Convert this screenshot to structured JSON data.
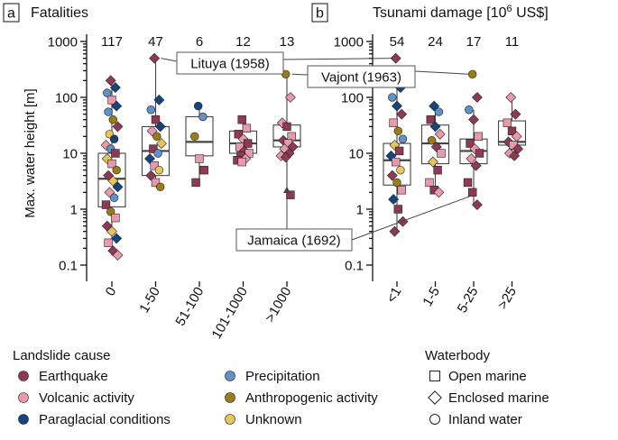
{
  "colors": {
    "Earthquake": "#8e3a54",
    "Volcanic activity": "#e89aaa",
    "Paraglacial conditions": "#15447f",
    "Precipitation": "#5f93c8",
    "Anthropogenic activity": "#9c7c16",
    "Unknown": "#e7c55a"
  },
  "legend": {
    "cause_title": "Landslide cause",
    "causes": [
      "Earthquake",
      "Volcanic activity",
      "Paraglacial conditions",
      "Precipitation",
      "Anthropogenic activity",
      "Unknown"
    ],
    "waterbody_title": "Waterbody",
    "waterbodies": [
      {
        "label": "Open marine",
        "shape": "square"
      },
      {
        "label": "Enclosed marine",
        "shape": "diamond"
      },
      {
        "label": "Inland water",
        "shape": "circle"
      }
    ]
  },
  "chart_data": [
    {
      "panel_label": "a",
      "type": "scatter",
      "title": "Fatalities",
      "ylabel": "Max. water height [m]",
      "yscale": "log",
      "ylim": [
        0.07,
        1000
      ],
      "yticks": [
        "0.1",
        "1",
        "10",
        "100",
        "1000"
      ],
      "categories": [
        "0",
        "1-50",
        "51-100",
        "101-1000",
        ">1000"
      ],
      "counts": [
        "117",
        "47",
        "6",
        "12",
        "13"
      ],
      "boxes": [
        {
          "q1": 1.1,
          "median": 3.5,
          "q3": 10,
          "low": 0.15,
          "high": 200
        },
        {
          "q1": 4,
          "median": 11,
          "q3": 30,
          "low": 2.5,
          "high": 500
        },
        {
          "q1": 9,
          "median": 16,
          "q3": 45,
          "low": 3,
          "high": 70
        },
        {
          "q1": 10,
          "median": 15,
          "q3": 25,
          "low": 7,
          "high": 40
        },
        {
          "q1": 13,
          "median": 17,
          "q3": 32,
          "low": 1.8,
          "high": 260
        }
      ],
      "points": [
        {
          "c": 0,
          "y": 200,
          "cause": "Earthquake",
          "wb": "diamond"
        },
        {
          "c": 0,
          "y": 150,
          "cause": "Paraglacial conditions",
          "wb": "diamond"
        },
        {
          "c": 0,
          "y": 120,
          "cause": "Precipitation",
          "wb": "circle"
        },
        {
          "c": 0,
          "y": 90,
          "cause": "Volcanic activity",
          "wb": "square"
        },
        {
          "c": 0,
          "y": 70,
          "cause": "Paraglacial conditions",
          "wb": "diamond"
        },
        {
          "c": 0,
          "y": 55,
          "cause": "Precipitation",
          "wb": "circle"
        },
        {
          "c": 0,
          "y": 40,
          "cause": "Anthropogenic activity",
          "wb": "circle"
        },
        {
          "c": 0,
          "y": 30,
          "cause": "Earthquake",
          "wb": "diamond"
        },
        {
          "c": 0,
          "y": 22,
          "cause": "Unknown",
          "wb": "circle"
        },
        {
          "c": 0,
          "y": 18,
          "cause": "Paraglacial conditions",
          "wb": "circle"
        },
        {
          "c": 0,
          "y": 14,
          "cause": "Volcanic activity",
          "wb": "diamond"
        },
        {
          "c": 0,
          "y": 12,
          "cause": "Precipitation",
          "wb": "circle"
        },
        {
          "c": 0,
          "y": 10,
          "cause": "Earthquake",
          "wb": "square"
        },
        {
          "c": 0,
          "y": 8,
          "cause": "Unknown",
          "wb": "diamond"
        },
        {
          "c": 0,
          "y": 6.5,
          "cause": "Volcanic activity",
          "wb": "square"
        },
        {
          "c": 0,
          "y": 5,
          "cause": "Anthropogenic activity",
          "wb": "circle"
        },
        {
          "c": 0,
          "y": 4,
          "cause": "Earthquake",
          "wb": "diamond"
        },
        {
          "c": 0,
          "y": 3.2,
          "cause": "Unknown",
          "wb": "diamond"
        },
        {
          "c": 0,
          "y": 2.5,
          "cause": "Paraglacial conditions",
          "wb": "diamond"
        },
        {
          "c": 0,
          "y": 2,
          "cause": "Volcanic activity",
          "wb": "diamond"
        },
        {
          "c": 0,
          "y": 1.6,
          "cause": "Precipitation",
          "wb": "circle"
        },
        {
          "c": 0,
          "y": 1.2,
          "cause": "Earthquake",
          "wb": "square"
        },
        {
          "c": 0,
          "y": 0.9,
          "cause": "Anthropogenic activity",
          "wb": "circle"
        },
        {
          "c": 0,
          "y": 0.7,
          "cause": "Volcanic activity",
          "wb": "square"
        },
        {
          "c": 0,
          "y": 0.5,
          "cause": "Earthquake",
          "wb": "diamond"
        },
        {
          "c": 0,
          "y": 0.4,
          "cause": "Unknown",
          "wb": "diamond"
        },
        {
          "c": 0,
          "y": 0.3,
          "cause": "Paraglacial conditions",
          "wb": "diamond"
        },
        {
          "c": 0,
          "y": 0.25,
          "cause": "Volcanic activity",
          "wb": "square"
        },
        {
          "c": 0,
          "y": 0.18,
          "cause": "Earthquake",
          "wb": "diamond"
        },
        {
          "c": 0,
          "y": 0.15,
          "cause": "Volcanic activity",
          "wb": "diamond"
        },
        {
          "c": 1,
          "y": 500,
          "cause": "Earthquake",
          "wb": "diamond"
        },
        {
          "c": 1,
          "y": 90,
          "cause": "Paraglacial conditions",
          "wb": "diamond"
        },
        {
          "c": 1,
          "y": 60,
          "cause": "Precipitation",
          "wb": "circle"
        },
        {
          "c": 1,
          "y": 40,
          "cause": "Earthquake",
          "wb": "square"
        },
        {
          "c": 1,
          "y": 30,
          "cause": "Paraglacial conditions",
          "wb": "diamond"
        },
        {
          "c": 1,
          "y": 25,
          "cause": "Volcanic activity",
          "wb": "diamond"
        },
        {
          "c": 1,
          "y": 20,
          "cause": "Anthropogenic activity",
          "wb": "circle"
        },
        {
          "c": 1,
          "y": 15,
          "cause": "Unknown",
          "wb": "diamond"
        },
        {
          "c": 1,
          "y": 12,
          "cause": "Earthquake",
          "wb": "square"
        },
        {
          "c": 1,
          "y": 10,
          "cause": "Precipitation",
          "wb": "circle"
        },
        {
          "c": 1,
          "y": 8,
          "cause": "Paraglacial conditions",
          "wb": "diamond"
        },
        {
          "c": 1,
          "y": 6,
          "cause": "Volcanic activity",
          "wb": "square"
        },
        {
          "c": 1,
          "y": 5,
          "cause": "Unknown",
          "wb": "circle"
        },
        {
          "c": 1,
          "y": 4,
          "cause": "Earthquake",
          "wb": "diamond"
        },
        {
          "c": 1,
          "y": 3,
          "cause": "Volcanic activity",
          "wb": "square"
        },
        {
          "c": 1,
          "y": 2.5,
          "cause": "Anthropogenic activity",
          "wb": "circle"
        },
        {
          "c": 2,
          "y": 70,
          "cause": "Paraglacial conditions",
          "wb": "circle"
        },
        {
          "c": 2,
          "y": 45,
          "cause": "Precipitation",
          "wb": "circle"
        },
        {
          "c": 2,
          "y": 20,
          "cause": "Anthropogenic activity",
          "wb": "circle"
        },
        {
          "c": 2,
          "y": 8,
          "cause": "Volcanic activity",
          "wb": "square"
        },
        {
          "c": 2,
          "y": 5,
          "cause": "Earthquake",
          "wb": "square"
        },
        {
          "c": 2,
          "y": 3,
          "cause": "Earthquake",
          "wb": "square"
        },
        {
          "c": 3,
          "y": 40,
          "cause": "Earthquake",
          "wb": "square"
        },
        {
          "c": 3,
          "y": 28,
          "cause": "Volcanic activity",
          "wb": "square"
        },
        {
          "c": 3,
          "y": 22,
          "cause": "Earthquake",
          "wb": "square"
        },
        {
          "c": 3,
          "y": 18,
          "cause": "Volcanic activity",
          "wb": "diamond"
        },
        {
          "c": 3,
          "y": 15,
          "cause": "Earthquake",
          "wb": "square"
        },
        {
          "c": 3,
          "y": 13,
          "cause": "Volcanic activity",
          "wb": "square"
        },
        {
          "c": 3,
          "y": 11,
          "cause": "Earthquake",
          "wb": "diamond"
        },
        {
          "c": 3,
          "y": 10,
          "cause": "Volcanic activity",
          "wb": "square"
        },
        {
          "c": 3,
          "y": 9,
          "cause": "Earthquake",
          "wb": "square"
        },
        {
          "c": 3,
          "y": 8,
          "cause": "Volcanic activity",
          "wb": "diamond"
        },
        {
          "c": 3,
          "y": 7.5,
          "cause": "Earthquake",
          "wb": "square"
        },
        {
          "c": 3,
          "y": 7,
          "cause": "Volcanic activity",
          "wb": "square"
        },
        {
          "c": 4,
          "y": 260,
          "cause": "Anthropogenic activity",
          "wb": "circle"
        },
        {
          "c": 4,
          "y": 100,
          "cause": "Volcanic activity",
          "wb": "diamond"
        },
        {
          "c": 4,
          "y": 35,
          "cause": "Volcanic activity",
          "wb": "diamond"
        },
        {
          "c": 4,
          "y": 30,
          "cause": "Earthquake",
          "wb": "square"
        },
        {
          "c": 4,
          "y": 20,
          "cause": "Volcanic activity",
          "wb": "square"
        },
        {
          "c": 4,
          "y": 17,
          "cause": "Earthquake",
          "wb": "diamond"
        },
        {
          "c": 4,
          "y": 15,
          "cause": "Volcanic activity",
          "wb": "square"
        },
        {
          "c": 4,
          "y": 13,
          "cause": "Earthquake",
          "wb": "diamond"
        },
        {
          "c": 4,
          "y": 12,
          "cause": "Volcanic activity",
          "wb": "diamond"
        },
        {
          "c": 4,
          "y": 10,
          "cause": "Earthquake",
          "wb": "diamond"
        },
        {
          "c": 4,
          "y": 9,
          "cause": "Volcanic activity",
          "wb": "diamond"
        },
        {
          "c": 4,
          "y": 8.5,
          "cause": "Earthquake",
          "wb": "diamond"
        },
        {
          "c": 4,
          "y": 1.8,
          "cause": "Earthquake",
          "wb": "square"
        }
      ]
    },
    {
      "panel_label": "b",
      "type": "scatter",
      "title": "Tsunami damage [10",
      "title_sup": "6",
      "title_suffix": " US$]",
      "yscale": "log",
      "ylim": [
        0.07,
        1000
      ],
      "yticks": [
        "0.1",
        "1",
        "10",
        "100",
        "1000"
      ],
      "categories": [
        "<1",
        "1-5",
        "5-25",
        ">25"
      ],
      "counts": [
        "54",
        "24",
        "17",
        "11"
      ],
      "boxes": [
        {
          "q1": 2.7,
          "median": 7.5,
          "q3": 15,
          "low": 0.4,
          "high": 150
        },
        {
          "q1": 6.5,
          "median": 15,
          "q3": 32,
          "low": 2,
          "high": 60
        },
        {
          "q1": 6.5,
          "median": 11,
          "q3": 18,
          "low": 1.2,
          "high": 60
        },
        {
          "q1": 14,
          "median": 16,
          "q3": 38,
          "low": 9,
          "high": 100
        }
      ],
      "points": [
        {
          "c": 0,
          "y": 500,
          "cause": "Earthquake",
          "wb": "diamond"
        },
        {
          "c": 0,
          "y": 150,
          "cause": "Paraglacial conditions",
          "wb": "diamond"
        },
        {
          "c": 0,
          "y": 100,
          "cause": "Precipitation",
          "wb": "circle"
        },
        {
          "c": 0,
          "y": 70,
          "cause": "Paraglacial conditions",
          "wb": "diamond"
        },
        {
          "c": 0,
          "y": 50,
          "cause": "Earthquake",
          "wb": "diamond"
        },
        {
          "c": 0,
          "y": 35,
          "cause": "Volcanic activity",
          "wb": "square"
        },
        {
          "c": 0,
          "y": 25,
          "cause": "Anthropogenic activity",
          "wb": "circle"
        },
        {
          "c": 0,
          "y": 18,
          "cause": "Precipitation",
          "wb": "circle"
        },
        {
          "c": 0,
          "y": 14,
          "cause": "Unknown",
          "wb": "diamond"
        },
        {
          "c": 0,
          "y": 11,
          "cause": "Earthquake",
          "wb": "square"
        },
        {
          "c": 0,
          "y": 9,
          "cause": "Paraglacial conditions",
          "wb": "diamond"
        },
        {
          "c": 0,
          "y": 7,
          "cause": "Volcanic activity",
          "wb": "square"
        },
        {
          "c": 0,
          "y": 5,
          "cause": "Unknown",
          "wb": "circle"
        },
        {
          "c": 0,
          "y": 4,
          "cause": "Earthquake",
          "wb": "diamond"
        },
        {
          "c": 0,
          "y": 3,
          "cause": "Anthropogenic activity",
          "wb": "circle"
        },
        {
          "c": 0,
          "y": 2.2,
          "cause": "Volcanic activity",
          "wb": "square"
        },
        {
          "c": 0,
          "y": 1.5,
          "cause": "Paraglacial conditions",
          "wb": "diamond"
        },
        {
          "c": 0,
          "y": 1.0,
          "cause": "Earthquake",
          "wb": "square"
        },
        {
          "c": 0,
          "y": 0.6,
          "cause": "Earthquake",
          "wb": "diamond"
        },
        {
          "c": 0,
          "y": 0.4,
          "cause": "Earthquake",
          "wb": "diamond"
        },
        {
          "c": 1,
          "y": 70,
          "cause": "Paraglacial conditions",
          "wb": "diamond"
        },
        {
          "c": 1,
          "y": 55,
          "cause": "Precipitation",
          "wb": "circle"
        },
        {
          "c": 1,
          "y": 40,
          "cause": "Earthquake",
          "wb": "square"
        },
        {
          "c": 1,
          "y": 30,
          "cause": "Paraglacial conditions",
          "wb": "diamond"
        },
        {
          "c": 1,
          "y": 22,
          "cause": "Volcanic activity",
          "wb": "diamond"
        },
        {
          "c": 1,
          "y": 17,
          "cause": "Anthropogenic activity",
          "wb": "circle"
        },
        {
          "c": 1,
          "y": 13,
          "cause": "Earthquake",
          "wb": "diamond"
        },
        {
          "c": 1,
          "y": 10,
          "cause": "Volcanic activity",
          "wb": "square"
        },
        {
          "c": 1,
          "y": 7,
          "cause": "Unknown",
          "wb": "diamond"
        },
        {
          "c": 1,
          "y": 5,
          "cause": "Earthquake",
          "wb": "square"
        },
        {
          "c": 1,
          "y": 3,
          "cause": "Volcanic activity",
          "wb": "square"
        },
        {
          "c": 1,
          "y": 2.2,
          "cause": "Earthquake",
          "wb": "square"
        },
        {
          "c": 1,
          "y": 2,
          "cause": "Volcanic activity",
          "wb": "diamond"
        },
        {
          "c": 2,
          "y": 260,
          "cause": "Anthropogenic activity",
          "wb": "circle"
        },
        {
          "c": 2,
          "y": 100,
          "cause": "Earthquake",
          "wb": "diamond"
        },
        {
          "c": 2,
          "y": 60,
          "cause": "Precipitation",
          "wb": "circle"
        },
        {
          "c": 2,
          "y": 40,
          "cause": "Earthquake",
          "wb": "diamond"
        },
        {
          "c": 2,
          "y": 20,
          "cause": "Volcanic activity",
          "wb": "square"
        },
        {
          "c": 2,
          "y": 15,
          "cause": "Earthquake",
          "wb": "square"
        },
        {
          "c": 2,
          "y": 12,
          "cause": "Volcanic activity",
          "wb": "diamond"
        },
        {
          "c": 2,
          "y": 10,
          "cause": "Earthquake",
          "wb": "square"
        },
        {
          "c": 2,
          "y": 8,
          "cause": "Volcanic activity",
          "wb": "diamond"
        },
        {
          "c": 2,
          "y": 6,
          "cause": "Earthquake",
          "wb": "diamond"
        },
        {
          "c": 2,
          "y": 3,
          "cause": "Earthquake",
          "wb": "square"
        },
        {
          "c": 2,
          "y": 2,
          "cause": "Earthquake",
          "wb": "square"
        },
        {
          "c": 2,
          "y": 1.2,
          "cause": "Earthquake",
          "wb": "diamond"
        },
        {
          "c": 3,
          "y": 100,
          "cause": "Volcanic activity",
          "wb": "diamond"
        },
        {
          "c": 3,
          "y": 50,
          "cause": "Earthquake",
          "wb": "diamond"
        },
        {
          "c": 3,
          "y": 35,
          "cause": "Volcanic activity",
          "wb": "square"
        },
        {
          "c": 3,
          "y": 25,
          "cause": "Earthquake",
          "wb": "square"
        },
        {
          "c": 3,
          "y": 20,
          "cause": "Volcanic activity",
          "wb": "diamond"
        },
        {
          "c": 3,
          "y": 16,
          "cause": "Earthquake",
          "wb": "diamond"
        },
        {
          "c": 3,
          "y": 14,
          "cause": "Volcanic activity",
          "wb": "square"
        },
        {
          "c": 3,
          "y": 12,
          "cause": "Earthquake",
          "wb": "diamond"
        },
        {
          "c": 3,
          "y": 10,
          "cause": "Volcanic activity",
          "wb": "diamond"
        },
        {
          "c": 3,
          "y": 9,
          "cause": "Earthquake",
          "wb": "diamond"
        }
      ]
    }
  ],
  "callouts": [
    {
      "label": "Lituya (1958)",
      "y": 500,
      "panels": [
        0,
        1
      ],
      "cats": [
        1,
        0
      ]
    },
    {
      "label": "Vajont (1963)",
      "y": 260,
      "panels": [
        0,
        1
      ],
      "cats": [
        4,
        2
      ]
    },
    {
      "label": "Jamaica (1692)",
      "panels": [
        0,
        1
      ],
      "cats": [
        4,
        2
      ],
      "ys": [
        1.8,
        1.7
      ]
    }
  ]
}
